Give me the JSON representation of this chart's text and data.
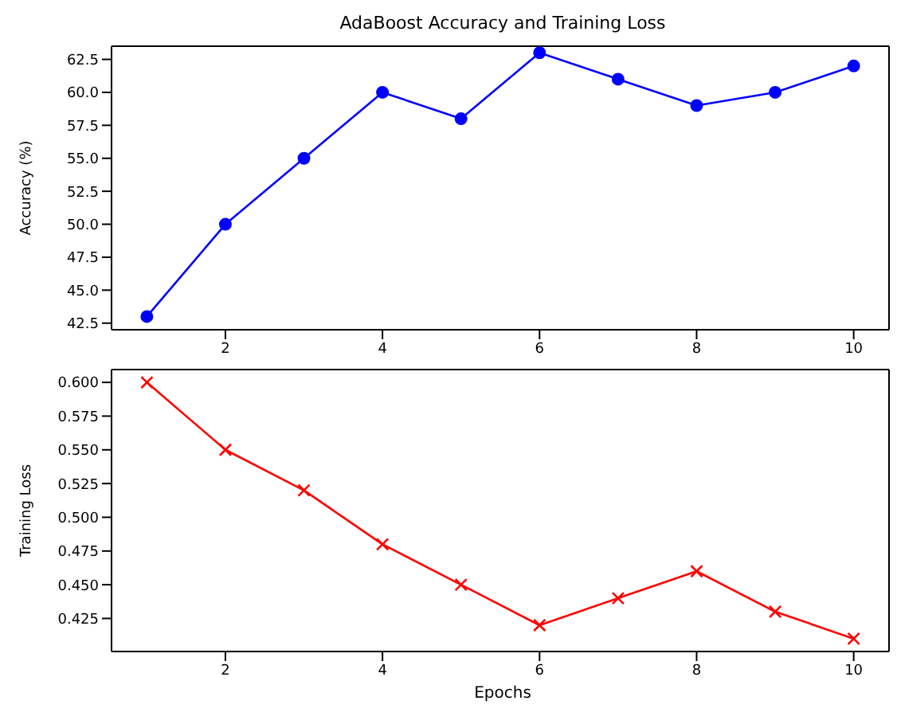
{
  "chart_data": [
    {
      "type": "line",
      "title": "AdaBoost Accuracy and Training Loss",
      "ylabel": "Accuracy (%)",
      "x": [
        1,
        2,
        3,
        4,
        5,
        6,
        7,
        8,
        9,
        10
      ],
      "marker": "circle",
      "series": [
        {
          "color": "#0000ff",
          "values": [
            43,
            50,
            55,
            60,
            58,
            63,
            61,
            59,
            60,
            62
          ]
        }
      ],
      "xlim": [
        0.55,
        10.45
      ],
      "xticks": [
        2,
        4,
        6,
        8,
        10
      ],
      "ylim": [
        42,
        63.5
      ],
      "yticks": [
        {
          "value": 42.5,
          "label": "42.5"
        },
        {
          "value": 45,
          "label": "45.0"
        },
        {
          "value": 47.5,
          "label": "47.5"
        },
        {
          "value": 50,
          "label": "50.0"
        },
        {
          "value": 52.5,
          "label": "52.5"
        },
        {
          "value": 55,
          "label": "55.0"
        },
        {
          "value": 57.5,
          "label": "57.5"
        },
        {
          "value": 60,
          "label": "60.0"
        },
        {
          "value": 62.5,
          "label": "62.5"
        }
      ]
    },
    {
      "type": "line",
      "xlabel": "Epochs",
      "ylabel": "Training Loss",
      "x": [
        1,
        2,
        3,
        4,
        5,
        6,
        7,
        8,
        9,
        10
      ],
      "marker": "cross",
      "series": [
        {
          "color": "#ff0000",
          "values": [
            0.6,
            0.55,
            0.52,
            0.48,
            0.45,
            0.42,
            0.44,
            0.46,
            0.43,
            0.41
          ]
        }
      ],
      "xlim": [
        0.55,
        10.45
      ],
      "xticks": [
        2,
        4,
        6,
        8,
        10
      ],
      "ylim": [
        0.4005,
        0.6095
      ],
      "yticks": [
        {
          "value": 0.425,
          "label": "0.425"
        },
        {
          "value": 0.45,
          "label": "0.450"
        },
        {
          "value": 0.475,
          "label": "0.475"
        },
        {
          "value": 0.5,
          "label": "0.500"
        },
        {
          "value": 0.525,
          "label": "0.525"
        },
        {
          "value": 0.55,
          "label": "0.550"
        },
        {
          "value": 0.575,
          "label": "0.575"
        },
        {
          "value": 0.6,
          "label": "0.600"
        }
      ]
    }
  ]
}
